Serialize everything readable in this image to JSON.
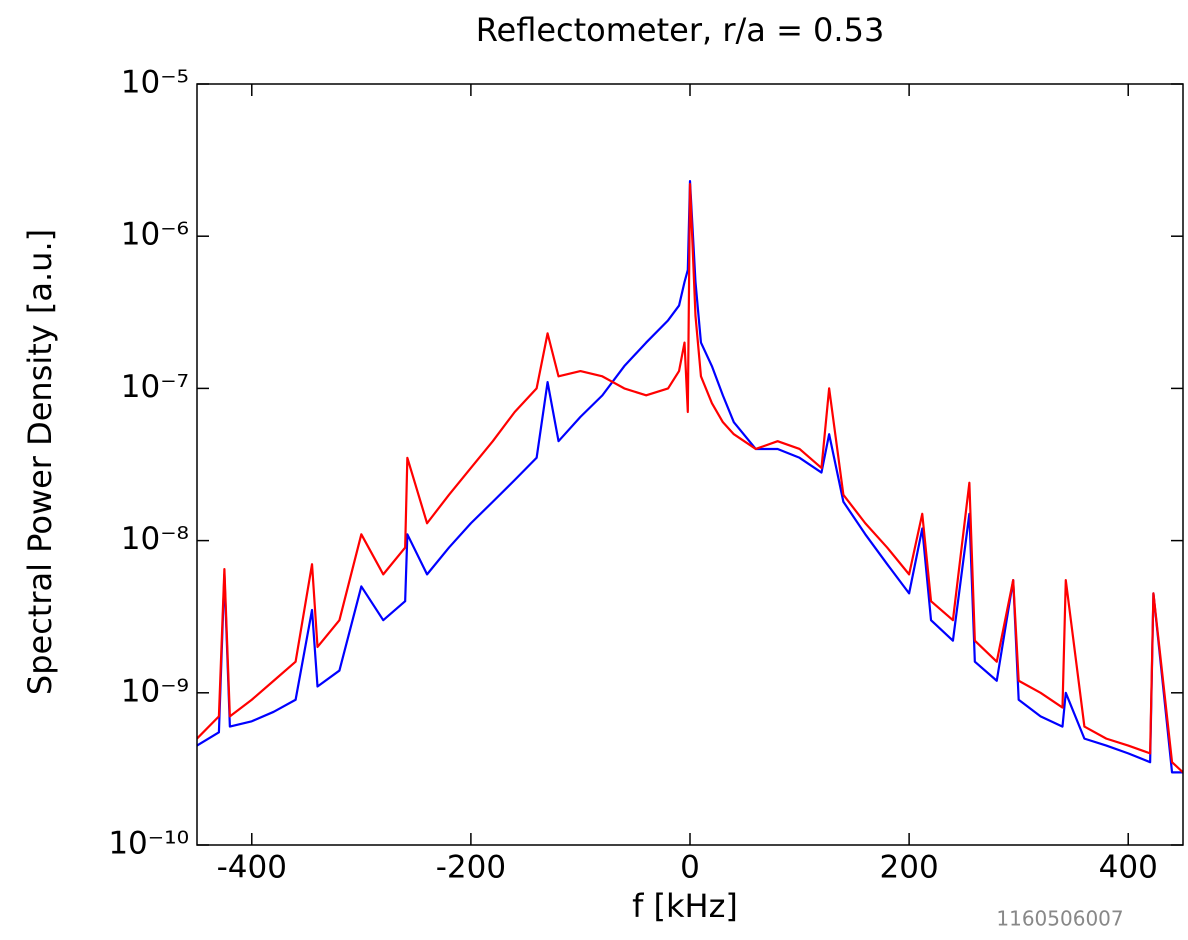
{
  "chart_data": {
    "type": "line",
    "title": "Reflectometer, r/a = 0.53",
    "xlabel": "f [kHz]",
    "ylabel": "Spectral Power Density [a.u.]",
    "annotation": "1160506007",
    "log_y": true,
    "xlim": [
      -450,
      450
    ],
    "ylim": [
      1e-10,
      1e-05
    ],
    "xticks": [
      -400,
      -200,
      0,
      200,
      400
    ],
    "yticks": [
      {
        "value": 1e-10,
        "label": "10⁻¹⁰"
      },
      {
        "value": 1e-09,
        "label": "10⁻⁹"
      },
      {
        "value": 1e-08,
        "label": "10⁻⁸"
      },
      {
        "value": 1e-07,
        "label": "10⁻⁷"
      },
      {
        "value": 1e-06,
        "label": "10⁻⁶"
      },
      {
        "value": 1e-05,
        "label": "10⁻⁵"
      }
    ],
    "x": [
      -450,
      -430,
      -425,
      -420,
      -400,
      -380,
      -360,
      -345,
      -340,
      -320,
      -300,
      -280,
      -260,
      -258,
      -240,
      -220,
      -200,
      -180,
      -160,
      -140,
      -130,
      -120,
      -100,
      -80,
      -60,
      -40,
      -20,
      -10,
      -5,
      -2,
      0,
      5,
      10,
      20,
      30,
      40,
      60,
      80,
      100,
      120,
      127,
      140,
      160,
      180,
      200,
      212,
      220,
      240,
      255,
      260,
      280,
      295,
      300,
      320,
      340,
      343,
      360,
      380,
      400,
      420,
      423,
      440,
      450
    ],
    "series": [
      {
        "color": "#0000ff",
        "values": [
          4.5e-10,
          5.5e-10,
          6e-09,
          6e-10,
          6.5e-10,
          7.5e-10,
          9e-10,
          3.5e-09,
          1.1e-09,
          1.4e-09,
          5e-09,
          3e-09,
          4e-09,
          1.1e-08,
          6e-09,
          9e-09,
          1.3e-08,
          1.8e-08,
          2.5e-08,
          3.5e-08,
          1.1e-07,
          4.5e-08,
          6.5e-08,
          9e-08,
          1.4e-07,
          2e-07,
          2.8e-07,
          3.5e-07,
          5e-07,
          6e-07,
          2.3e-06,
          5e-07,
          2e-07,
          1.4e-07,
          9e-08,
          6e-08,
          4e-08,
          4e-08,
          3.5e-08,
          2.8e-08,
          5e-08,
          1.8e-08,
          1.1e-08,
          7e-09,
          4.5e-09,
          1.2e-08,
          3e-09,
          2.2e-09,
          1.5e-08,
          1.6e-09,
          1.2e-09,
          5.5e-09,
          9e-10,
          7e-10,
          6e-10,
          1e-09,
          5e-10,
          4.5e-10,
          4e-10,
          3.5e-10,
          4.5e-09,
          3e-10,
          3e-10
        ]
      },
      {
        "color": "#ff0000",
        "values": [
          5e-10,
          7e-10,
          6.5e-09,
          7e-10,
          9e-10,
          1.2e-09,
          1.6e-09,
          7e-09,
          2e-09,
          3e-09,
          1.1e-08,
          6e-09,
          9e-09,
          3.5e-08,
          1.3e-08,
          2e-08,
          3e-08,
          4.5e-08,
          7e-08,
          1e-07,
          2.3e-07,
          1.2e-07,
          1.3e-07,
          1.2e-07,
          1e-07,
          9e-08,
          1e-07,
          1.3e-07,
          2e-07,
          7e-08,
          2.2e-06,
          3e-07,
          1.2e-07,
          8e-08,
          6e-08,
          5e-08,
          4e-08,
          4.5e-08,
          4e-08,
          3e-08,
          1e-07,
          2e-08,
          1.3e-08,
          9e-09,
          6e-09,
          1.5e-08,
          4e-09,
          3e-09,
          2.4e-08,
          2.2e-09,
          1.6e-09,
          5.5e-09,
          1.2e-09,
          1e-09,
          8e-10,
          5.5e-09,
          6e-10,
          5e-10,
          4.5e-10,
          4e-10,
          4.5e-09,
          3.5e-10,
          3e-10
        ]
      }
    ]
  }
}
